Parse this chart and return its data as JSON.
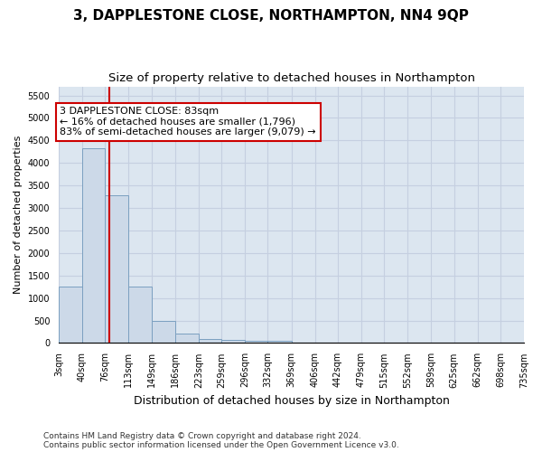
{
  "title": "3, DAPPLESTONE CLOSE, NORTHAMPTON, NN4 9QP",
  "subtitle": "Size of property relative to detached houses in Northampton",
  "xlabel": "Distribution of detached houses by size in Northampton",
  "ylabel": "Number of detached properties",
  "bar_color": "#ccd9e8",
  "bar_edgecolor": "#7ba0c0",
  "grid_color": "#c5cfe0",
  "background_color": "#dce6f0",
  "vline_x": 83,
  "vline_color": "#cc0000",
  "annotation_line1": "3 DAPPLESTONE CLOSE: 83sqm",
  "annotation_line2": "← 16% of detached houses are smaller (1,796)",
  "annotation_line3": "83% of semi-detached houses are larger (9,079) →",
  "annotation_box_facecolor": "#ffffff",
  "annotation_box_edgecolor": "#cc0000",
  "footnote": "Contains HM Land Registry data © Crown copyright and database right 2024.\nContains public sector information licensed under the Open Government Licence v3.0.",
  "bin_edges": [
    3,
    40,
    76,
    113,
    149,
    186,
    223,
    259,
    296,
    332,
    369,
    406,
    442,
    479,
    515,
    552,
    589,
    625,
    662,
    698,
    735
  ],
  "bar_heights": [
    1250,
    4330,
    3280,
    1250,
    490,
    215,
    90,
    60,
    55,
    55,
    0,
    0,
    0,
    0,
    0,
    0,
    0,
    0,
    0,
    0
  ],
  "ylim": [
    0,
    5700
  ],
  "yticks": [
    0,
    500,
    1000,
    1500,
    2000,
    2500,
    3000,
    3500,
    4000,
    4500,
    5000,
    5500
  ],
  "tick_labels": [
    "3sqm",
    "40sqm",
    "76sqm",
    "113sqm",
    "149sqm",
    "186sqm",
    "223sqm",
    "259sqm",
    "296sqm",
    "332sqm",
    "369sqm",
    "406sqm",
    "442sqm",
    "479sqm",
    "515sqm",
    "552sqm",
    "589sqm",
    "625sqm",
    "662sqm",
    "698sqm",
    "735sqm"
  ],
  "title_fontsize": 11,
  "subtitle_fontsize": 9.5,
  "ylabel_fontsize": 8,
  "xlabel_fontsize": 9,
  "annot_fontsize": 8,
  "tick_fontsize": 7
}
